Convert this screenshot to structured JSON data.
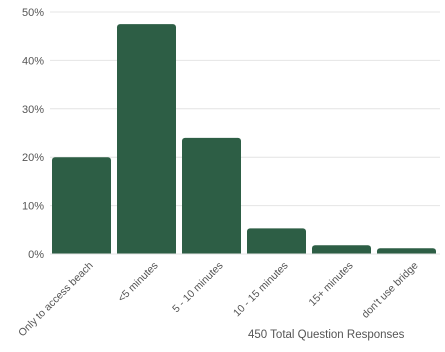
{
  "chart_data": {
    "type": "bar",
    "categories": [
      "Only to access beach",
      "<5 minutes",
      "5 - 10 minutes",
      "10 - 15 minutes",
      "15+ minutes",
      "don't use bridge"
    ],
    "values": [
      20,
      47.5,
      24,
      5.3,
      1.8,
      1.2
    ],
    "ylim": [
      0,
      50
    ],
    "yticks": [
      "0%",
      "10%",
      "20%",
      "30%",
      "40%",
      "50%"
    ],
    "grid": true,
    "bar_color": "#2d5e45"
  },
  "footer": {
    "responses": "450 Total Question Responses"
  }
}
